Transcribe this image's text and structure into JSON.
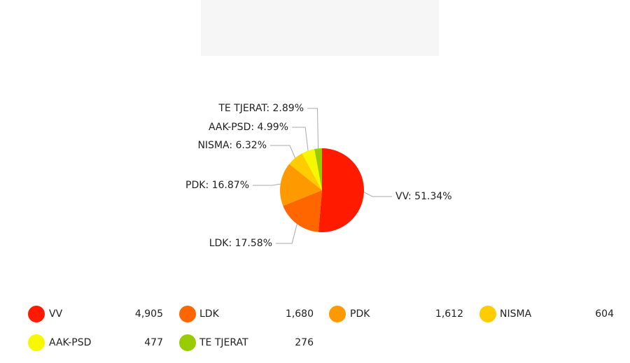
{
  "chart_data": {
    "type": "pie",
    "categories": [
      "VV",
      "LDK",
      "PDK",
      "NISMA",
      "AAK-PSD",
      "TE TJERAT"
    ],
    "values": [
      51.34,
      17.58,
      16.87,
      6.32,
      4.99,
      2.89
    ],
    "value_labels": [
      "VV: 51.34%",
      "LDK: 17.58%",
      "PDK: 16.87%",
      "NISMA: 6.32%",
      "AAK-PSD: 4.99%",
      "TE TJERAT: 2.89%"
    ],
    "colors": [
      "#ff1a00",
      "#ff6600",
      "#ff9900",
      "#ffcc00",
      "#f7f700",
      "#99cc00"
    ],
    "counts": [
      4905,
      1680,
      1612,
      604,
      477,
      276
    ],
    "count_labels": [
      "4,905",
      "1,680",
      "1,612",
      "604",
      "477",
      "276"
    ]
  }
}
